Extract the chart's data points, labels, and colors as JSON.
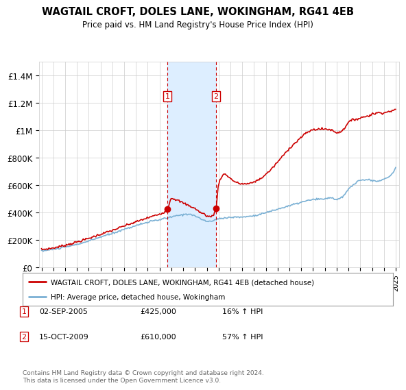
{
  "title": "WAGTAIL CROFT, DOLES LANE, WOKINGHAM, RG41 4EB",
  "subtitle": "Price paid vs. HM Land Registry's House Price Index (HPI)",
  "legend_line1": "WAGTAIL CROFT, DOLES LANE, WOKINGHAM, RG41 4EB (detached house)",
  "legend_line2": "HPI: Average price, detached house, Wokingham",
  "footnote": "Contains HM Land Registry data © Crown copyright and database right 2024.\nThis data is licensed under the Open Government Licence v3.0.",
  "transactions": [
    {
      "label": "1",
      "date": "02-SEP-2005",
      "price": "£425,000",
      "hpi": "16% ↑ HPI",
      "year": 2005.67
    },
    {
      "label": "2",
      "date": "15-OCT-2009",
      "price": "£610,000",
      "hpi": "57% ↑ HPI",
      "year": 2009.79
    }
  ],
  "red_line_color": "#cc0000",
  "blue_line_color": "#7ab0d4",
  "shade_color": "#ddeeff",
  "marker_box_color": "#cc0000",
  "grid_color": "#cccccc",
  "background_color": "#ffffff",
  "ylim": [
    0,
    1500000
  ],
  "xlim_start": 1994.8,
  "xlim_end": 2025.3,
  "yticks": [
    0,
    200000,
    400000,
    600000,
    800000,
    1000000,
    1200000,
    1400000
  ],
  "ylabels": [
    "£0",
    "£200K",
    "£400K",
    "£600K",
    "£800K",
    "£1M",
    "£1.2M",
    "£1.4M"
  ]
}
